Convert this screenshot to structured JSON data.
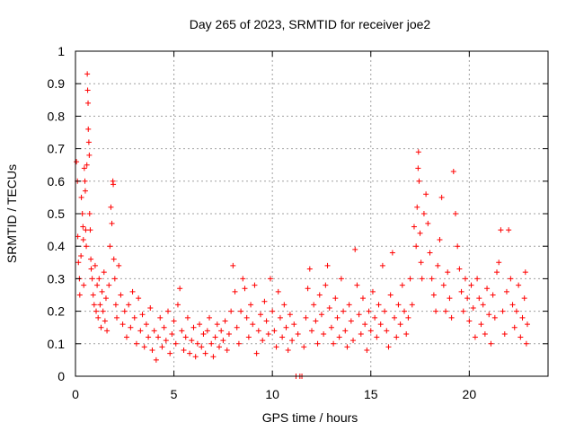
{
  "chart_data": {
    "type": "scatter",
    "title": "Day 265 of 2023, SRMTID for receiver joe2",
    "xlabel": "GPS time / hours",
    "ylabel": "SRMTID / TECUs",
    "xlim": [
      0,
      24
    ],
    "ylim": [
      0,
      1
    ],
    "xticks": [
      0,
      5,
      10,
      15,
      20
    ],
    "xtick_labels": [
      "0",
      "5",
      "10",
      "15",
      "20"
    ],
    "yticks": [
      0,
      0.1,
      0.2,
      0.3,
      0.4,
      0.5,
      0.6,
      0.7,
      0.8,
      0.9,
      1
    ],
    "ytick_labels": [
      "0",
      "0.1",
      "0.2",
      "0.3",
      "0.4",
      "0.5",
      "0.6",
      "0.7",
      "0.8",
      "0.9",
      "1"
    ],
    "grid": true,
    "marker": "+",
    "color": "#ff0000",
    "series": [
      {
        "name": "SRMTID",
        "points": [
          [
            0.05,
            0.66
          ],
          [
            0.1,
            0.6
          ],
          [
            0.12,
            0.43
          ],
          [
            0.15,
            0.35
          ],
          [
            0.2,
            0.3
          ],
          [
            0.22,
            0.25
          ],
          [
            0.28,
            0.37
          ],
          [
            0.3,
            0.55
          ],
          [
            0.35,
            0.5
          ],
          [
            0.38,
            0.46
          ],
          [
            0.4,
            0.42
          ],
          [
            0.42,
            0.28
          ],
          [
            0.45,
            0.64
          ],
          [
            0.48,
            0.6
          ],
          [
            0.5,
            0.57
          ],
          [
            0.52,
            0.45
          ],
          [
            0.55,
            0.4
          ],
          [
            0.58,
            0.65
          ],
          [
            0.6,
            0.93
          ],
          [
            0.62,
            0.88
          ],
          [
            0.64,
            0.84
          ],
          [
            0.65,
            0.76
          ],
          [
            0.68,
            0.72
          ],
          [
            0.7,
            0.68
          ],
          [
            0.72,
            0.5
          ],
          [
            0.75,
            0.45
          ],
          [
            0.78,
            0.36
          ],
          [
            0.8,
            0.33
          ],
          [
            0.85,
            0.3
          ],
          [
            0.9,
            0.25
          ],
          [
            0.95,
            0.22
          ],
          [
            1.0,
            0.34
          ],
          [
            1.05,
            0.2
          ],
          [
            1.1,
            0.28
          ],
          [
            1.15,
            0.18
          ],
          [
            1.2,
            0.3
          ],
          [
            1.25,
            0.22
          ],
          [
            1.3,
            0.15
          ],
          [
            1.35,
            0.26
          ],
          [
            1.4,
            0.2
          ],
          [
            1.45,
            0.32
          ],
          [
            1.5,
            0.17
          ],
          [
            1.55,
            0.24
          ],
          [
            1.6,
            0.14
          ],
          [
            1.7,
            0.28
          ],
          [
            1.75,
            0.4
          ],
          [
            1.8,
            0.52
          ],
          [
            1.85,
            0.47
          ],
          [
            1.9,
            0.6
          ],
          [
            1.92,
            0.59
          ],
          [
            1.95,
            0.36
          ],
          [
            2.0,
            0.3
          ],
          [
            2.05,
            0.22
          ],
          [
            2.1,
            0.18
          ],
          [
            2.2,
            0.34
          ],
          [
            2.3,
            0.25
          ],
          [
            2.4,
            0.16
          ],
          [
            2.5,
            0.2
          ],
          [
            2.6,
            0.12
          ],
          [
            2.7,
            0.22
          ],
          [
            2.8,
            0.15
          ],
          [
            2.9,
            0.26
          ],
          [
            3.0,
            0.18
          ],
          [
            3.1,
            0.1
          ],
          [
            3.2,
            0.24
          ],
          [
            3.3,
            0.14
          ],
          [
            3.4,
            0.19
          ],
          [
            3.5,
            0.09
          ],
          [
            3.6,
            0.16
          ],
          [
            3.7,
            0.12
          ],
          [
            3.8,
            0.21
          ],
          [
            3.9,
            0.08
          ],
          [
            4.0,
            0.14
          ],
          [
            4.1,
            0.05
          ],
          [
            4.2,
            0.12
          ],
          [
            4.3,
            0.18
          ],
          [
            4.4,
            0.09
          ],
          [
            4.5,
            0.15
          ],
          [
            4.6,
            0.11
          ],
          [
            4.7,
            0.2
          ],
          [
            4.8,
            0.07
          ],
          [
            4.9,
            0.13
          ],
          [
            5.0,
            0.17
          ],
          [
            5.1,
            0.1
          ],
          [
            5.2,
            0.22
          ],
          [
            5.3,
            0.27
          ],
          [
            5.4,
            0.14
          ],
          [
            5.5,
            0.08
          ],
          [
            5.6,
            0.12
          ],
          [
            5.7,
            0.18
          ],
          [
            5.8,
            0.07
          ],
          [
            5.9,
            0.11
          ],
          [
            6.0,
            0.15
          ],
          [
            6.1,
            0.06
          ],
          [
            6.2,
            0.1
          ],
          [
            6.3,
            0.16
          ],
          [
            6.4,
            0.09
          ],
          [
            6.5,
            0.13
          ],
          [
            6.6,
            0.07
          ],
          [
            6.7,
            0.14
          ],
          [
            6.8,
            0.18
          ],
          [
            6.9,
            0.1
          ],
          [
            7.0,
            0.06
          ],
          [
            7.1,
            0.12
          ],
          [
            7.2,
            0.16
          ],
          [
            7.3,
            0.09
          ],
          [
            7.4,
            0.14
          ],
          [
            7.5,
            0.11
          ],
          [
            7.6,
            0.17
          ],
          [
            7.7,
            0.08
          ],
          [
            7.8,
            0.13
          ],
          [
            7.9,
            0.2
          ],
          [
            8.0,
            0.34
          ],
          [
            8.1,
            0.26
          ],
          [
            8.2,
            0.15
          ],
          [
            8.3,
            0.1
          ],
          [
            8.4,
            0.2
          ],
          [
            8.5,
            0.3
          ],
          [
            8.6,
            0.27
          ],
          [
            8.7,
            0.18
          ],
          [
            8.8,
            0.12
          ],
          [
            8.9,
            0.22
          ],
          [
            9.0,
            0.16
          ],
          [
            9.1,
            0.28
          ],
          [
            9.2,
            0.07
          ],
          [
            9.3,
            0.14
          ],
          [
            9.4,
            0.19
          ],
          [
            9.5,
            0.11
          ],
          [
            9.6,
            0.23
          ],
          [
            9.7,
            0.17
          ],
          [
            9.8,
            0.13
          ],
          [
            9.9,
            0.3
          ],
          [
            10.0,
            0.2
          ],
          [
            10.1,
            0.14
          ],
          [
            10.2,
            0.09
          ],
          [
            10.3,
            0.26
          ],
          [
            10.4,
            0.18
          ],
          [
            10.5,
            0.12
          ],
          [
            10.6,
            0.22
          ],
          [
            10.7,
            0.15
          ],
          [
            10.8,
            0.08
          ],
          [
            10.9,
            0.19
          ],
          [
            11.0,
            0.11
          ],
          [
            11.1,
            0.16
          ],
          [
            11.2,
            0.0
          ],
          [
            11.3,
            0.13
          ],
          [
            11.4,
            0.0
          ],
          [
            11.5,
            0.0
          ],
          [
            11.6,
            0.09
          ],
          [
            11.7,
            0.18
          ],
          [
            11.8,
            0.27
          ],
          [
            11.9,
            0.33
          ],
          [
            12.0,
            0.14
          ],
          [
            12.1,
            0.22
          ],
          [
            12.2,
            0.17
          ],
          [
            12.3,
            0.1
          ],
          [
            12.4,
            0.25
          ],
          [
            12.5,
            0.19
          ],
          [
            12.6,
            0.13
          ],
          [
            12.7,
            0.28
          ],
          [
            12.8,
            0.34
          ],
          [
            12.9,
            0.21
          ],
          [
            13.0,
            0.15
          ],
          [
            13.1,
            0.1
          ],
          [
            13.2,
            0.24
          ],
          [
            13.3,
            0.18
          ],
          [
            13.4,
            0.12
          ],
          [
            13.5,
            0.3
          ],
          [
            13.6,
            0.2
          ],
          [
            13.7,
            0.14
          ],
          [
            13.8,
            0.09
          ],
          [
            13.9,
            0.22
          ],
          [
            14.0,
            0.17
          ],
          [
            14.1,
            0.11
          ],
          [
            14.2,
            0.39
          ],
          [
            14.3,
            0.28
          ],
          [
            14.4,
            0.19
          ],
          [
            14.5,
            0.13
          ],
          [
            14.6,
            0.24
          ],
          [
            14.7,
            0.16
          ],
          [
            14.8,
            0.08
          ],
          [
            14.9,
            0.2
          ],
          [
            15.0,
            0.14
          ],
          [
            15.1,
            0.26
          ],
          [
            15.2,
            0.18
          ],
          [
            15.3,
            0.12
          ],
          [
            15.4,
            0.22
          ],
          [
            15.5,
            0.16
          ],
          [
            15.6,
            0.34
          ],
          [
            15.7,
            0.2
          ],
          [
            15.8,
            0.14
          ],
          [
            15.9,
            0.09
          ],
          [
            16.0,
            0.25
          ],
          [
            16.1,
            0.38
          ],
          [
            16.2,
            0.18
          ],
          [
            16.3,
            0.12
          ],
          [
            16.4,
            0.22
          ],
          [
            16.5,
            0.16
          ],
          [
            16.6,
            0.28
          ],
          [
            16.7,
            0.2
          ],
          [
            16.8,
            0.13
          ],
          [
            16.9,
            0.18
          ],
          [
            17.0,
            0.3
          ],
          [
            17.1,
            0.22
          ],
          [
            17.2,
            0.46
          ],
          [
            17.3,
            0.4
          ],
          [
            17.35,
            0.52
          ],
          [
            17.4,
            0.64
          ],
          [
            17.42,
            0.69
          ],
          [
            17.45,
            0.6
          ],
          [
            17.5,
            0.44
          ],
          [
            17.55,
            0.35
          ],
          [
            17.6,
            0.3
          ],
          [
            17.7,
            0.5
          ],
          [
            17.8,
            0.56
          ],
          [
            17.9,
            0.47
          ],
          [
            18.0,
            0.38
          ],
          [
            18.1,
            0.3
          ],
          [
            18.2,
            0.25
          ],
          [
            18.3,
            0.2
          ],
          [
            18.4,
            0.34
          ],
          [
            18.5,
            0.42
          ],
          [
            18.6,
            0.55
          ],
          [
            18.7,
            0.28
          ],
          [
            18.8,
            0.2
          ],
          [
            18.9,
            0.32
          ],
          [
            19.0,
            0.24
          ],
          [
            19.1,
            0.18
          ],
          [
            19.2,
            0.63
          ],
          [
            19.3,
            0.5
          ],
          [
            19.4,
            0.4
          ],
          [
            19.5,
            0.33
          ],
          [
            19.6,
            0.26
          ],
          [
            19.7,
            0.2
          ],
          [
            19.8,
            0.3
          ],
          [
            19.9,
            0.24
          ],
          [
            20.0,
            0.17
          ],
          [
            20.1,
            0.28
          ],
          [
            20.2,
            0.21
          ],
          [
            20.3,
            0.12
          ],
          [
            20.4,
            0.3
          ],
          [
            20.5,
            0.24
          ],
          [
            20.6,
            0.16
          ],
          [
            20.7,
            0.22
          ],
          [
            20.8,
            0.13
          ],
          [
            20.9,
            0.27
          ],
          [
            21.0,
            0.19
          ],
          [
            21.1,
            0.1
          ],
          [
            21.2,
            0.25
          ],
          [
            21.3,
            0.18
          ],
          [
            21.4,
            0.32
          ],
          [
            21.5,
            0.35
          ],
          [
            21.6,
            0.45
          ],
          [
            21.7,
            0.2
          ],
          [
            21.8,
            0.13
          ],
          [
            21.9,
            0.26
          ],
          [
            22.0,
            0.45
          ],
          [
            22.1,
            0.3
          ],
          [
            22.2,
            0.22
          ],
          [
            22.3,
            0.15
          ],
          [
            22.4,
            0.2
          ],
          [
            22.5,
            0.28
          ],
          [
            22.6,
            0.12
          ],
          [
            22.7,
            0.18
          ],
          [
            22.8,
            0.24
          ],
          [
            22.85,
            0.32
          ],
          [
            22.9,
            0.1
          ],
          [
            22.95,
            0.16
          ]
        ]
      }
    ]
  }
}
